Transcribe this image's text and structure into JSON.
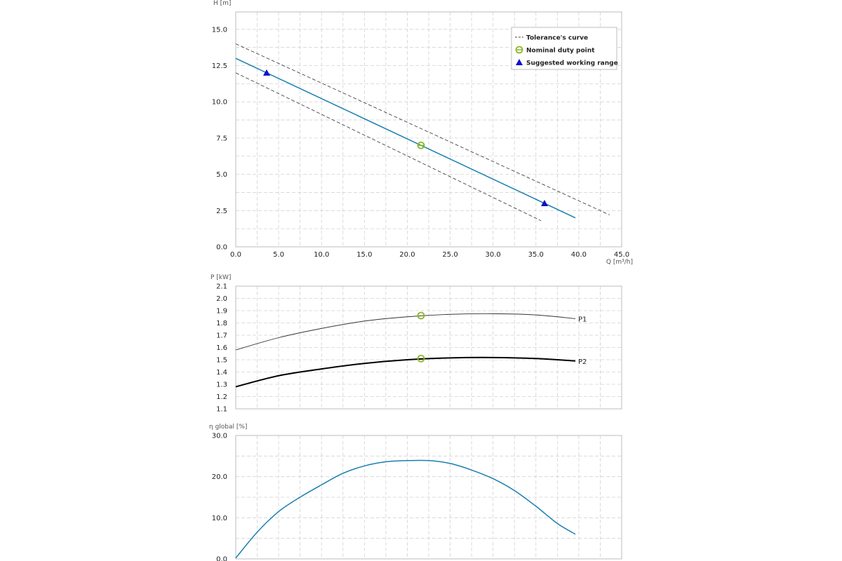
{
  "chart_data": [
    {
      "type": "line",
      "ylabel": "H [m]",
      "xlabel": "Q [m³/h]",
      "xlim": [
        0,
        45
      ],
      "ylim": [
        0,
        16.2
      ],
      "x_ticks": [
        "0.0",
        "5.0",
        "10.0",
        "15.0",
        "20.0",
        "25.0",
        "30.0",
        "35.0",
        "40.0",
        "45.0"
      ],
      "y_ticks": [
        "0.0",
        "2.5",
        "5.0",
        "7.5",
        "10.0",
        "12.5",
        "15.0"
      ],
      "grid": true,
      "legend_position": "top-right",
      "legend": [
        {
          "label": "Tolerance's curve",
          "marker": "dashed-line"
        },
        {
          "label": "Nominal duty point",
          "marker": "open-circle"
        },
        {
          "label": "Suggested working range",
          "marker": "triangle"
        }
      ],
      "series": [
        {
          "role": "curve",
          "color": "#1a7fb0",
          "x": [
            0,
            39.6
          ],
          "y": [
            13.0,
            2.0
          ]
        },
        {
          "role": "tolerance-upper",
          "color": "#444444",
          "x": [
            0,
            43.6
          ],
          "y": [
            14.0,
            2.2
          ]
        },
        {
          "role": "tolerance-lower",
          "color": "#444444",
          "x": [
            0,
            35.6
          ],
          "y": [
            12.0,
            1.8
          ]
        }
      ],
      "nominal_point": {
        "x": 21.6,
        "y": 7.0,
        "color": "#8cb82c"
      },
      "working_range_points": [
        {
          "x": 3.6,
          "y": 12.0
        },
        {
          "x": 36.0,
          "y": 3.0
        }
      ],
      "working_range_color": "#1010c8"
    },
    {
      "type": "line",
      "ylabel": "P [kW]",
      "xlim": [
        0,
        45
      ],
      "ylim": [
        1.1,
        2.1
      ],
      "y_ticks": [
        "1.1",
        "1.2",
        "1.3",
        "1.4",
        "1.5",
        "1.6",
        "1.7",
        "1.8",
        "1.9",
        "2.0",
        "2.1"
      ],
      "grid": true,
      "series": [
        {
          "name": "P1",
          "color": "#333333",
          "width": 0.9,
          "x": [
            0,
            5,
            10,
            15,
            20,
            25,
            30,
            35,
            39.6
          ],
          "y": [
            1.58,
            1.68,
            1.755,
            1.815,
            1.85,
            1.87,
            1.875,
            1.865,
            1.835
          ]
        },
        {
          "name": "P2",
          "color": "#000000",
          "width": 2,
          "x": [
            0,
            5,
            10,
            15,
            20,
            25,
            30,
            35,
            39.6
          ],
          "y": [
            1.28,
            1.37,
            1.425,
            1.47,
            1.5,
            1.515,
            1.518,
            1.51,
            1.49
          ]
        }
      ],
      "nominal_points": [
        {
          "x": 21.6,
          "y": 1.86
        },
        {
          "x": 21.6,
          "y": 1.51
        }
      ],
      "nominal_color": "#8cb82c"
    },
    {
      "type": "line",
      "ylabel": "η global [%]",
      "xlim": [
        0,
        45
      ],
      "ylim": [
        0,
        30
      ],
      "y_ticks": [
        "0.0",
        "10.0",
        "20.0",
        "30.0"
      ],
      "grid": true,
      "series": [
        {
          "color": "#1a7fb0",
          "x": [
            0,
            2.5,
            5,
            7.5,
            10,
            12.5,
            15,
            17.5,
            20,
            22.5,
            25,
            27.5,
            30,
            32.5,
            35,
            37.5,
            39.6
          ],
          "y": [
            0.2,
            6.5,
            11.5,
            15.0,
            18.0,
            20.8,
            22.6,
            23.6,
            23.9,
            23.9,
            23.2,
            21.6,
            19.5,
            16.6,
            12.8,
            8.6,
            6.0
          ]
        }
      ]
    }
  ]
}
